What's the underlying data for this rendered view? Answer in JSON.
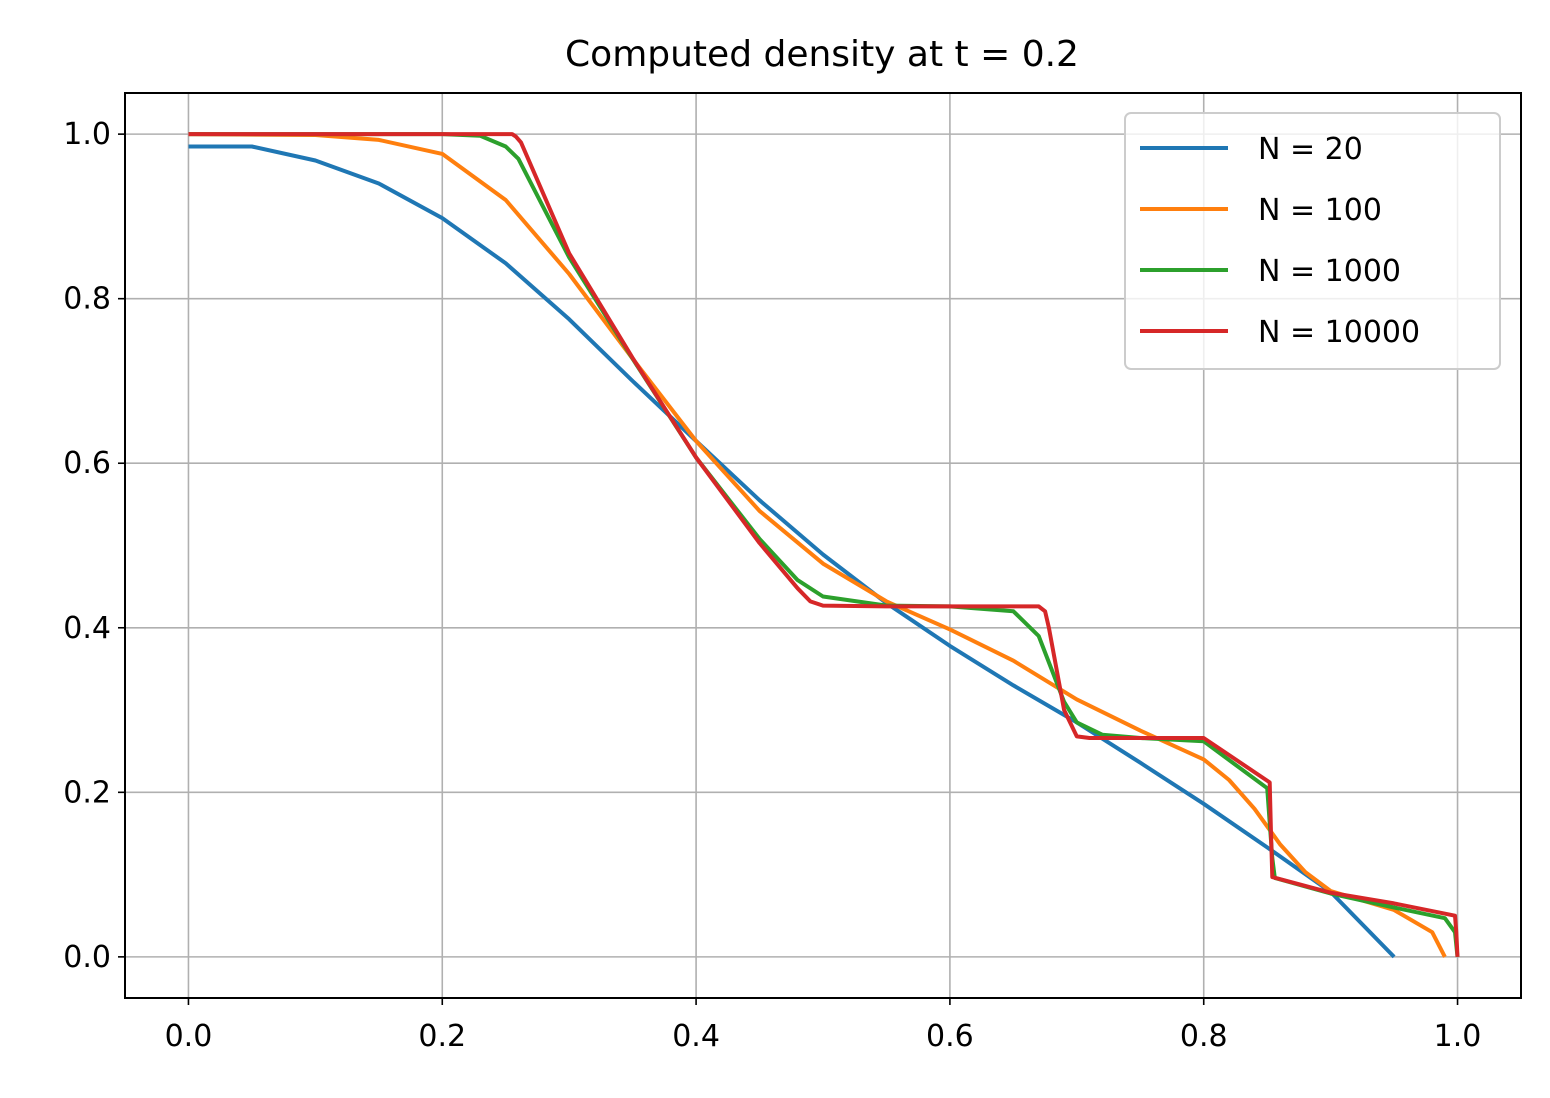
{
  "chart_data": {
    "type": "line",
    "title": "Computed density at t = 0.2",
    "xlabel": "",
    "ylabel": "",
    "xlim": [
      -0.05,
      1.05
    ],
    "ylim": [
      -0.05,
      1.05
    ],
    "xticks": [
      "0.0",
      "0.2",
      "0.4",
      "0.6",
      "0.8",
      "1.0"
    ],
    "yticks": [
      "0.0",
      "0.2",
      "0.4",
      "0.6",
      "0.8",
      "1.0"
    ],
    "grid": true,
    "legend_position": "top-right",
    "series": [
      {
        "name": "N = 20",
        "color": "#1f77b4",
        "x": [
          0.0,
          0.05,
          0.1,
          0.15,
          0.2,
          0.25,
          0.3,
          0.35,
          0.4,
          0.45,
          0.5,
          0.55,
          0.6,
          0.65,
          0.7,
          0.75,
          0.8,
          0.85,
          0.9,
          0.95
        ],
        "y": [
          0.985,
          0.985,
          0.968,
          0.94,
          0.898,
          0.843,
          0.775,
          0.7,
          0.627,
          0.555,
          0.489,
          0.43,
          0.378,
          0.33,
          0.285,
          0.236,
          0.186,
          0.133,
          0.079,
          0.0
        ]
      },
      {
        "name": "N = 100",
        "color": "#ff7f0e",
        "x": [
          0.0,
          0.1,
          0.15,
          0.2,
          0.25,
          0.3,
          0.35,
          0.4,
          0.45,
          0.5,
          0.55,
          0.6,
          0.65,
          0.7,
          0.75,
          0.8,
          0.82,
          0.84,
          0.86,
          0.88,
          0.9,
          0.95,
          0.98,
          0.99
        ],
        "y": [
          1.0,
          0.999,
          0.993,
          0.976,
          0.92,
          0.83,
          0.727,
          0.627,
          0.542,
          0.478,
          0.432,
          0.398,
          0.36,
          0.313,
          0.275,
          0.24,
          0.215,
          0.18,
          0.137,
          0.103,
          0.08,
          0.057,
          0.03,
          0.0
        ]
      },
      {
        "name": "N = 1000",
        "color": "#2ca02c",
        "x": [
          0.0,
          0.2,
          0.23,
          0.25,
          0.26,
          0.3,
          0.35,
          0.4,
          0.45,
          0.48,
          0.5,
          0.55,
          0.6,
          0.65,
          0.67,
          0.68,
          0.69,
          0.7,
          0.72,
          0.75,
          0.8,
          0.85,
          0.854,
          0.856,
          0.9,
          0.95,
          0.99,
          0.998,
          1.0
        ],
        "y": [
          1.0,
          1.0,
          0.998,
          0.985,
          0.97,
          0.85,
          0.727,
          0.607,
          0.508,
          0.458,
          0.438,
          0.427,
          0.426,
          0.42,
          0.39,
          0.35,
          0.31,
          0.285,
          0.27,
          0.266,
          0.262,
          0.205,
          0.12,
          0.096,
          0.077,
          0.06,
          0.047,
          0.03,
          0.0
        ]
      },
      {
        "name": "N = 10000",
        "color": "#d62728",
        "x": [
          0.0,
          0.25,
          0.255,
          0.258,
          0.262,
          0.3,
          0.35,
          0.4,
          0.45,
          0.48,
          0.49,
          0.5,
          0.55,
          0.6,
          0.67,
          0.675,
          0.678,
          0.69,
          0.7,
          0.71,
          0.75,
          0.8,
          0.852,
          0.853,
          0.854,
          0.9,
          0.95,
          0.998,
          0.999,
          1.0
        ],
        "y": [
          1.0,
          1.0,
          1.0,
          0.997,
          0.99,
          0.855,
          0.728,
          0.607,
          0.503,
          0.448,
          0.432,
          0.427,
          0.426,
          0.426,
          0.426,
          0.42,
          0.4,
          0.3,
          0.268,
          0.266,
          0.266,
          0.266,
          0.212,
          0.15,
          0.097,
          0.078,
          0.065,
          0.05,
          0.03,
          0.0
        ]
      }
    ]
  }
}
